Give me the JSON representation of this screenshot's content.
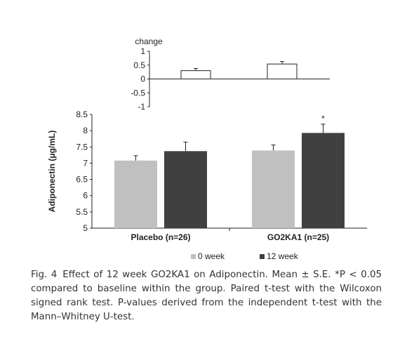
{
  "chart_data": [
    {
      "type": "bar",
      "panel": "change",
      "title": "change",
      "categories": [
        "Placebo (n=26)",
        "GO2KA1 (n=25)"
      ],
      "series": [
        {
          "values": [
            0.3,
            0.54
          ],
          "errors": [
            0.08,
            0.09
          ]
        }
      ],
      "ylim": [
        -1,
        1
      ],
      "yticks": [
        "1",
        "0.5",
        "0",
        "-0.5",
        "-1"
      ],
      "colors": {
        "bar": "#ffffff",
        "edge": "#222222"
      }
    },
    {
      "type": "bar",
      "panel": "main",
      "categories": [
        "Placebo (n=26)",
        "GO2KA1 (n=25)"
      ],
      "ylabel": "Adiponectin (μg/mL)",
      "ylim": [
        5,
        8.5
      ],
      "yticks": [
        "8.5",
        "8",
        "7.5",
        "7",
        "6.5",
        "6",
        "5.5",
        "5"
      ],
      "series": [
        {
          "name": "0 week",
          "values": [
            7.08,
            7.39
          ],
          "errors": [
            0.15,
            0.17
          ],
          "color": "#c0c0c0"
        },
        {
          "name": "12 week",
          "values": [
            7.37,
            7.93
          ],
          "errors": [
            0.28,
            0.27
          ],
          "color": "#404040"
        }
      ],
      "annotations": [
        {
          "series": "12 week",
          "category": "GO2KA1 (n=25)",
          "text": "*"
        }
      ],
      "legend": "bottom-center"
    }
  ],
  "caption": {
    "label": "Fig. 4",
    "text": "Effect of 12 week GO2KA1 on Adiponectin. Mean ± S.E. *P < 0.05 compared to baseline within the group. Paired t-test with the Wilcoxon signed rank test. P-values derived from the independent t-test with the Mann–Whitney U-test."
  }
}
